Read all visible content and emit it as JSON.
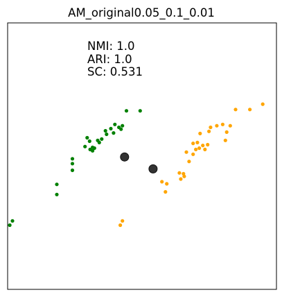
{
  "chart_data": {
    "type": "scatter",
    "title": "AM_original0.05_0.1_0.01",
    "xlabel": "",
    "ylabel": "",
    "xlim": [
      0,
      100
    ],
    "ylim": [
      0,
      100
    ],
    "grid": false,
    "axis_ticks": false,
    "annotations": [
      "NMI: 1.0",
      "ARI: 1.0",
      "SC: 0.531"
    ],
    "series": [
      {
        "color": "#008000",
        "points": [
          {
            "x": 44.2,
            "y": 67.0
          },
          {
            "x": 49.3,
            "y": 67.0
          },
          {
            "x": 42.7,
            "y": 61.4
          },
          {
            "x": 39.9,
            "y": 61.9
          },
          {
            "x": 42.2,
            "y": 60.1
          },
          {
            "x": 41.4,
            "y": 60.8
          },
          {
            "x": 38.4,
            "y": 60.3
          },
          {
            "x": 36.4,
            "y": 59.5
          },
          {
            "x": 39.4,
            "y": 58.7
          },
          {
            "x": 36.8,
            "y": 58.2
          },
          {
            "x": 29.6,
            "y": 56.9
          },
          {
            "x": 35.0,
            "y": 56.4
          },
          {
            "x": 33.5,
            "y": 55.9
          },
          {
            "x": 30.5,
            "y": 55.6
          },
          {
            "x": 34.1,
            "y": 55.1
          },
          {
            "x": 28.8,
            "y": 53.6
          },
          {
            "x": 31.6,
            "y": 53.3
          },
          {
            "x": 32.3,
            "y": 53.0
          },
          {
            "x": 30.7,
            "y": 52.5
          },
          {
            "x": 31.6,
            "y": 52.0
          },
          {
            "x": 24.1,
            "y": 49.0
          },
          {
            "x": 24.1,
            "y": 47.2
          },
          {
            "x": 24.1,
            "y": 44.7
          },
          {
            "x": 18.3,
            "y": 39.4
          },
          {
            "x": 18.3,
            "y": 35.6
          },
          {
            "x": 1.8,
            "y": 25.7
          },
          {
            "x": 0.8,
            "y": 24.1
          }
        ]
      },
      {
        "color": "#ffa500",
        "points": [
          {
            "x": 94.9,
            "y": 69.5
          },
          {
            "x": 90.1,
            "y": 67.5
          },
          {
            "x": 84.8,
            "y": 67.5
          },
          {
            "x": 80.0,
            "y": 61.9
          },
          {
            "x": 77.8,
            "y": 61.4
          },
          {
            "x": 82.8,
            "y": 61.4
          },
          {
            "x": 75.5,
            "y": 60.8
          },
          {
            "x": 81.5,
            "y": 59.0
          },
          {
            "x": 74.9,
            "y": 59.3
          },
          {
            "x": 71.6,
            "y": 58.5
          },
          {
            "x": 81.0,
            "y": 55.9
          },
          {
            "x": 70.6,
            "y": 55.1
          },
          {
            "x": 69.0,
            "y": 54.8
          },
          {
            "x": 74.4,
            "y": 54.3
          },
          {
            "x": 72.6,
            "y": 54.0
          },
          {
            "x": 71.3,
            "y": 53.0
          },
          {
            "x": 73.4,
            "y": 52.5
          },
          {
            "x": 70.0,
            "y": 52.5
          },
          {
            "x": 66.5,
            "y": 51.5
          },
          {
            "x": 69.0,
            "y": 50.7
          },
          {
            "x": 67.5,
            "y": 48.0
          },
          {
            "x": 63.9,
            "y": 43.7
          },
          {
            "x": 65.4,
            "y": 43.4
          },
          {
            "x": 65.7,
            "y": 42.4
          },
          {
            "x": 64.4,
            "y": 41.4
          },
          {
            "x": 57.4,
            "y": 40.4
          },
          {
            "x": 59.2,
            "y": 39.6
          },
          {
            "x": 58.7,
            "y": 36.6
          },
          {
            "x": 42.7,
            "y": 25.7
          },
          {
            "x": 41.9,
            "y": 24.1
          }
        ]
      },
      {
        "color": "#333333",
        "points": [
          {
            "x": 43.5,
            "y": 49.7
          },
          {
            "x": 54.1,
            "y": 45.2
          }
        ]
      }
    ]
  }
}
